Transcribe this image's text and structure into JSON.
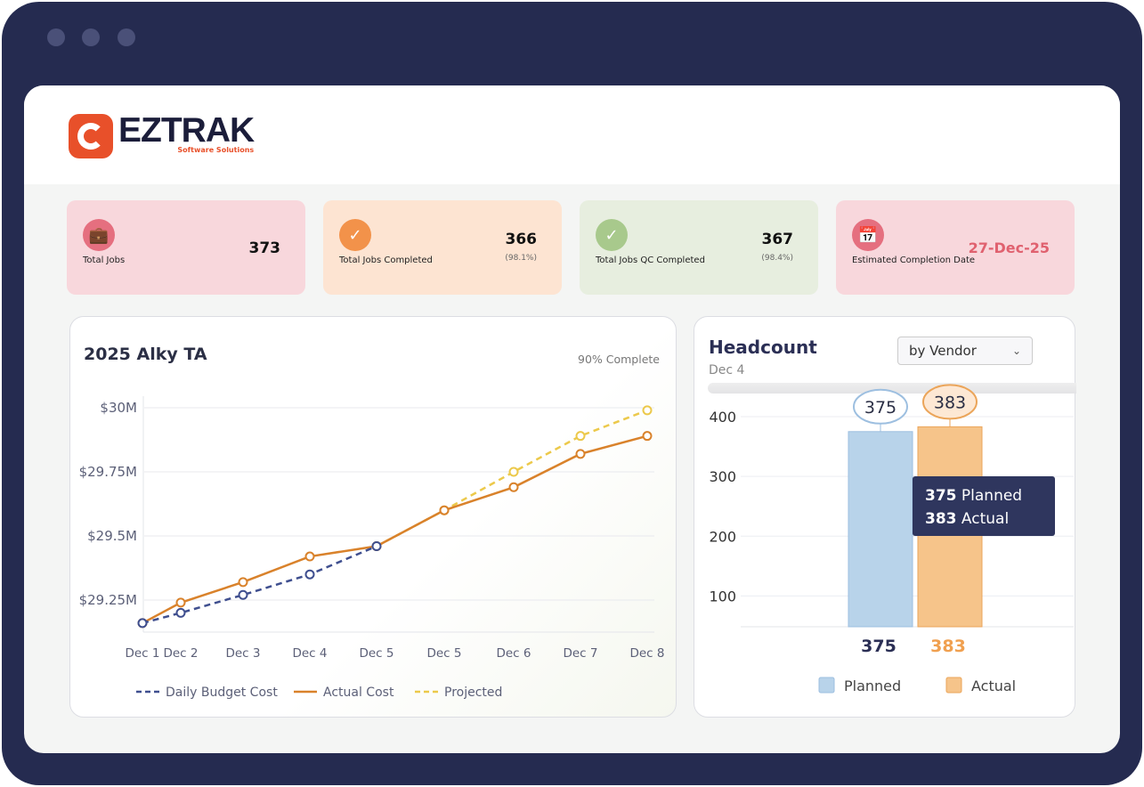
{
  "brand": {
    "name": "EZTRAK",
    "tagline": "Software Solutions",
    "color": "#e8502a"
  },
  "kpis": [
    {
      "label": "Total Jobs",
      "value": "373",
      "pct": "",
      "icon": "briefcase-icon",
      "bg": "#f8d7dc",
      "icon_bg": "#e56f7f"
    },
    {
      "label": "Total Jobs Completed",
      "value": "366",
      "pct": "(98.1%)",
      "icon": "check-icon",
      "bg": "#fde4d2",
      "icon_bg": "#f2924a"
    },
    {
      "label": "Total Jobs QC Completed",
      "value": "367",
      "pct": "(98.4%)",
      "icon": "double-check-icon",
      "bg": "#e7eedf",
      "icon_bg": "#a8c98c"
    },
    {
      "label": "Estimated Completion Date",
      "value": "27-Dec-25",
      "pct": "",
      "icon": "calendar-icon",
      "bg": "#f8d7dc",
      "icon_bg": "#e56f7f"
    }
  ],
  "cost_panel": {
    "title": "2025 Alky TA",
    "status": "90% Complete"
  },
  "headcount_panel": {
    "title": "Headcount",
    "subtitle": "Dec 4",
    "dropdown": "by Vendor",
    "tooltip": {
      "planned_value": "375",
      "planned_label": "Planned",
      "actual_value": "383",
      "actual_label": "Actual"
    }
  },
  "chart_data": [
    {
      "type": "line",
      "title": "2025 Alky TA",
      "xlabel": "",
      "ylabel": "",
      "categories": [
        "Dec 1",
        "Dec 2",
        "Dec 3",
        "Dec 4",
        "Dec 5",
        "Dec 5",
        "Dec 6",
        "Dec 7",
        "Dec 8"
      ],
      "yticks": [
        "$29.25M",
        "$29.5M",
        "$29.75M",
        "$30M"
      ],
      "ytick_values": [
        29.25,
        29.5,
        29.75,
        30
      ],
      "ylim": [
        29.16,
        30.02
      ],
      "units": "$M",
      "grid": true,
      "legend": "bottom",
      "series": [
        {
          "name": "Daily Budget Cost",
          "color": "#3f4f8f",
          "dash": true,
          "values": [
            29.16,
            29.2,
            29.27,
            29.35,
            29.46,
            null,
            null,
            null,
            null
          ]
        },
        {
          "name": "Actual Cost",
          "color": "#d9822b",
          "dash": false,
          "values": [
            29.16,
            29.24,
            29.32,
            29.42,
            29.46,
            29.6,
            29.69,
            29.82,
            29.89
          ]
        },
        {
          "name": "Projected",
          "color": "#ecc94b",
          "dash": true,
          "values": [
            null,
            null,
            null,
            null,
            29.46,
            29.6,
            29.75,
            29.89,
            29.99
          ]
        }
      ]
    },
    {
      "type": "bar",
      "title": "Headcount",
      "categories": [
        "Planned",
        "Actual"
      ],
      "yticks": [
        "100",
        "200",
        "300",
        "400"
      ],
      "ytick_values": [
        100,
        200,
        300,
        400
      ],
      "ylim": [
        50,
        400
      ],
      "grid": true,
      "legend": "bottom",
      "series": [
        {
          "name": "Planned",
          "color": "#b8d3ea",
          "value": 375,
          "label": "375"
        },
        {
          "name": "Actual",
          "color": "#f6c48a",
          "value": 383,
          "label": "383"
        }
      ]
    }
  ]
}
